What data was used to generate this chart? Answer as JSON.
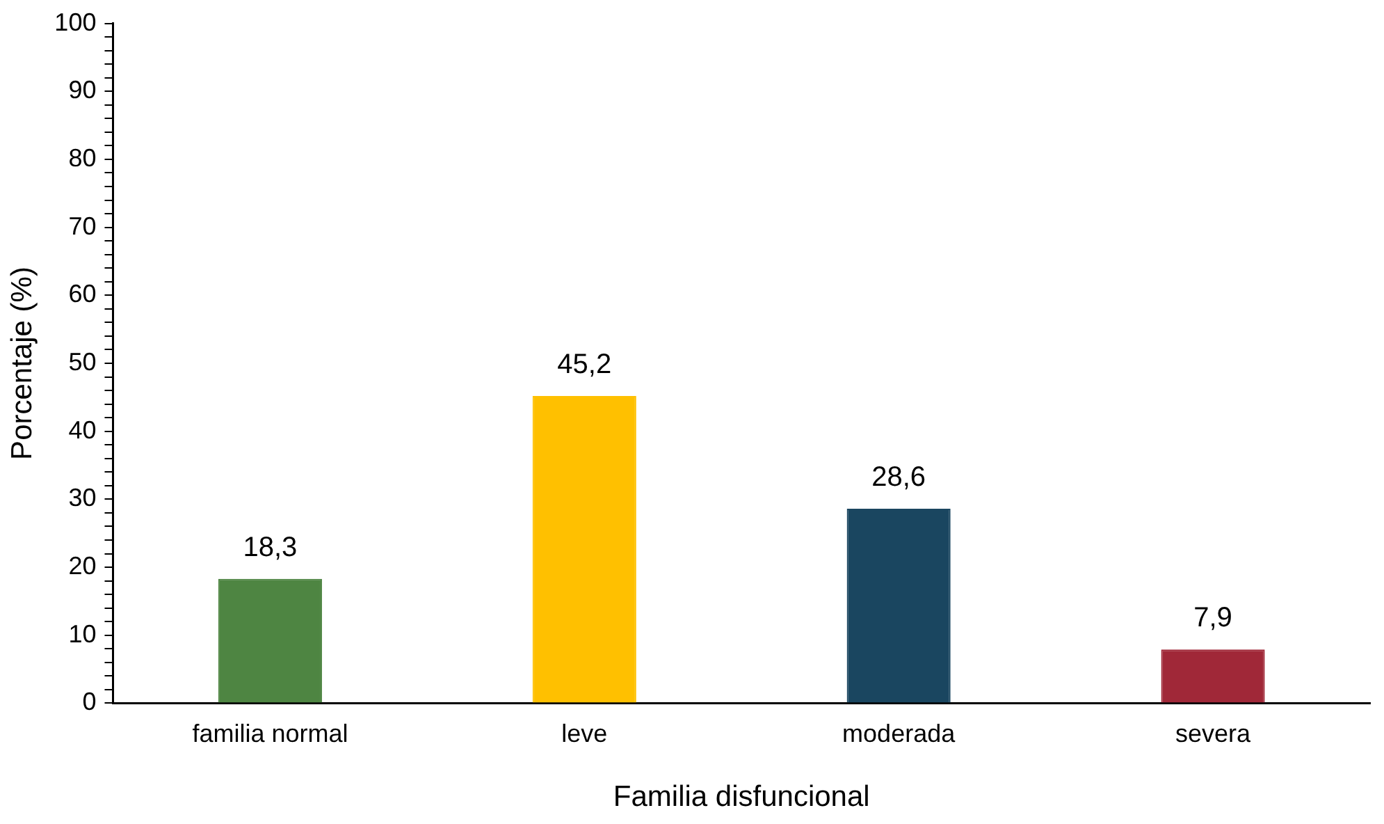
{
  "chart_data": {
    "type": "bar",
    "xlabel": "Familia disfuncional",
    "ylabel": "Porcentaje (%)",
    "categories": [
      "familia normal",
      "leve",
      "moderada",
      "severa"
    ],
    "values": [
      18.3,
      45.2,
      28.6,
      7.9
    ],
    "colors": [
      "#4e8542",
      "#ffc000",
      "#1a4660",
      "#a02838"
    ],
    "value_labels": [
      "18,3",
      "45,2",
      "28,6",
      "7,9"
    ],
    "ylim": [
      0,
      100
    ],
    "yticks": [
      0,
      {
        "value": 2,
        "label": null
      },
      {
        "value": 4,
        "label": null
      },
      {
        "value": 6,
        "label": null
      },
      {
        "value": 8,
        "label": null
      },
      10,
      {
        "value": 12,
        "label": null
      },
      {
        "value": 14,
        "label": null
      },
      {
        "value": 16,
        "label": null
      },
      {
        "value": 18,
        "label": null
      },
      20,
      {
        "value": 22,
        "label": null
      },
      {
        "value": 24,
        "label": null
      },
      {
        "value": 26,
        "label": null
      },
      {
        "value": 28,
        "label": null
      },
      30,
      {
        "value": 32,
        "label": null
      },
      {
        "value": 34,
        "label": null
      },
      {
        "value": 36,
        "label": null
      },
      {
        "value": 38,
        "label": null
      },
      40,
      {
        "value": 42,
        "label": null
      },
      {
        "value": 44,
        "label": null
      },
      {
        "value": 46,
        "label": null
      },
      {
        "value": 48,
        "label": null
      },
      50,
      {
        "value": 52,
        "label": null
      },
      {
        "value": 54,
        "label": null
      },
      {
        "value": 56,
        "label": null
      },
      {
        "value": 58,
        "label": null
      },
      60,
      {
        "value": 62,
        "label": null
      },
      {
        "value": 64,
        "label": null
      },
      {
        "value": 66,
        "label": null
      },
      {
        "value": 68,
        "label": null
      },
      70,
      {
        "value": 72,
        "label": null
      },
      {
        "value": 74,
        "label": null
      },
      {
        "value": 76,
        "label": null
      },
      {
        "value": 78,
        "label": null
      },
      80,
      {
        "value": 82,
        "label": null
      },
      {
        "value": 84,
        "label": null
      },
      {
        "value": 86,
        "label": null
      },
      {
        "value": 88,
        "label": null
      },
      90,
      {
        "value": 92,
        "label": null
      },
      {
        "value": 94,
        "label": null
      },
      {
        "value": 96,
        "label": null
      },
      {
        "value": 98,
        "label": null
      },
      100
    ],
    "grid": false,
    "legend": false
  }
}
